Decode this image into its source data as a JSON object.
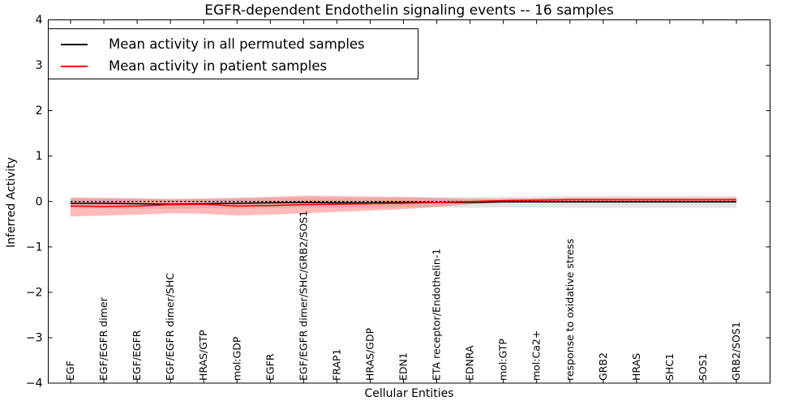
{
  "chart_data": {
    "type": "line",
    "title": "EGFR-dependent Endothelin signaling events -- 16 samples",
    "xlabel": "Cellular Entities",
    "ylabel": "Inferred Activity",
    "ylim": [
      -4,
      4
    ],
    "yticks": [
      4,
      3,
      2,
      1,
      0,
      -1,
      -2,
      -3,
      -4
    ],
    "ytick_labels": [
      "4",
      "3",
      "2",
      "1",
      "0",
      "−1",
      "−2",
      "−3",
      "−4"
    ],
    "x_tick_rotation": 90,
    "grid": false,
    "categories": [
      "EGF",
      "EGF/EGFR dimer",
      "EGF/EGFR",
      "EGF/EGFR dimer/SHC",
      "HRAS/GTP",
      "mol:GDP",
      "EGFR",
      "EGF/EGFR dimer/SHC/GRB2/SOS1",
      "FRAP1",
      "HRAS/GDP",
      "EDN1",
      "ETA receptor/Endothelin-1",
      "EDNRA",
      "mol:GTP",
      "mol:Ca2+",
      "response to oxidative stress",
      "GRB2",
      "HRAS",
      "SHC1",
      "SOS1",
      "GRB2/SOS1"
    ],
    "series": [
      {
        "name": "Mean activity in all permuted samples",
        "color": "#000000",
        "values": [
          -0.04,
          -0.04,
          -0.05,
          -0.06,
          -0.05,
          -0.04,
          -0.03,
          -0.02,
          -0.03,
          -0.03,
          -0.02,
          -0.02,
          -0.02,
          -0.01,
          -0.01,
          -0.01,
          -0.01,
          -0.01,
          -0.01,
          -0.01,
          -0.01
        ]
      },
      {
        "name": "Mean activity in patient samples",
        "color": "#ff0000",
        "values": [
          -0.1,
          -0.11,
          -0.1,
          -0.07,
          -0.06,
          -0.1,
          -0.09,
          -0.07,
          -0.06,
          -0.05,
          -0.04,
          -0.02,
          0.0,
          0.02,
          0.03,
          0.04,
          0.04,
          0.04,
          0.04,
          0.04,
          0.04
        ]
      }
    ],
    "bands": [
      {
        "name": "permuted samples std band",
        "color": "rgba(0,0,0,0.10)",
        "upper": [
          0.07,
          0.07,
          0.07,
          0.04,
          0.05,
          0.07,
          0.08,
          0.09,
          0.08,
          0.08,
          0.09,
          0.09,
          0.1,
          0.11,
          0.11,
          0.12,
          0.12,
          0.12,
          0.12,
          0.12,
          0.12
        ],
        "lower": [
          -0.15,
          -0.15,
          -0.15,
          -0.16,
          -0.15,
          -0.15,
          -0.14,
          -0.13,
          -0.14,
          -0.14,
          -0.13,
          -0.13,
          -0.14,
          -0.13,
          -0.13,
          -0.14,
          -0.14,
          -0.14,
          -0.14,
          -0.14,
          -0.14
        ]
      },
      {
        "name": "patient samples std band",
        "color": "rgba(255,0,0,0.27)",
        "upper": [
          0.09,
          0.08,
          0.07,
          0.06,
          0.07,
          0.08,
          0.1,
          0.13,
          0.12,
          0.11,
          0.1,
          0.08,
          0.06,
          0.06,
          0.07,
          0.08,
          0.08,
          0.08,
          0.08,
          0.08,
          0.08
        ],
        "lower": [
          -0.33,
          -0.31,
          -0.29,
          -0.26,
          -0.27,
          -0.31,
          -0.29,
          -0.26,
          -0.23,
          -0.2,
          -0.17,
          -0.12,
          -0.06,
          -0.02,
          -0.01,
          0.0,
          0.0,
          0.0,
          0.0,
          0.0,
          0.0
        ]
      }
    ],
    "zero_line": {
      "y": 0,
      "style": "dashed",
      "color": "#000000"
    },
    "legend": {
      "position": "upper left",
      "entries": [
        {
          "label": "Mean activity in all permuted samples",
          "color": "#000000"
        },
        {
          "label": "Mean activity in patient samples",
          "color": "#ff0000"
        }
      ]
    }
  }
}
